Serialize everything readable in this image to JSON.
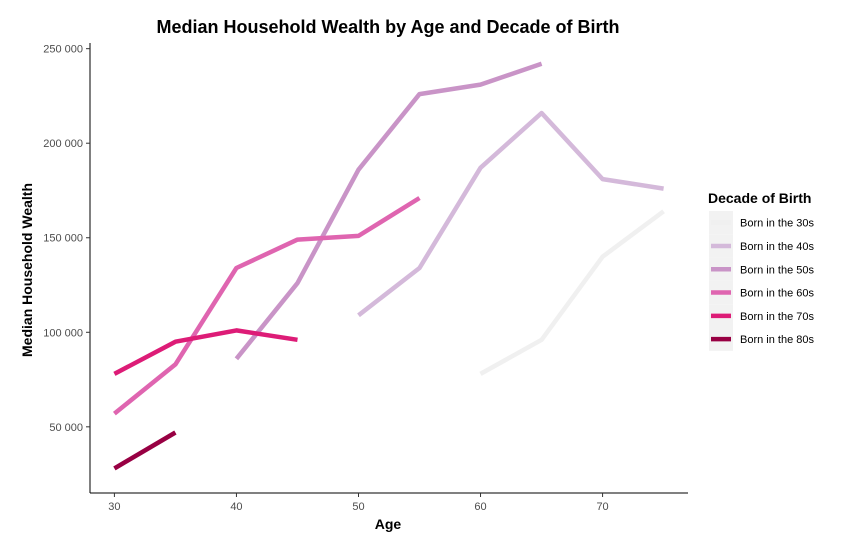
{
  "chart_data": {
    "type": "line",
    "title": "Median Household Wealth by Age and Decade of Birth",
    "xlabel": "Age",
    "ylabel": "Median Household Wealth",
    "xlim": [
      28,
      77
    ],
    "ylim": [
      15000,
      253000
    ],
    "x_ticks": [
      30,
      40,
      50,
      60,
      70
    ],
    "x_tick_labels": [
      "30",
      "40",
      "50",
      "60",
      "70"
    ],
    "y_ticks": [
      50000,
      100000,
      150000,
      200000,
      250000
    ],
    "y_tick_labels": [
      "50 000",
      "100 000",
      "150 000",
      "200 000",
      "250 000"
    ],
    "grid": false,
    "legend": {
      "title": "Decade of Birth",
      "placement": "right"
    },
    "series": [
      {
        "name": "Born in the 30s",
        "color": "#f0f0f0",
        "x": [
          60,
          65,
          70,
          75
        ],
        "y": [
          78000,
          96000,
          140000,
          164000
        ]
      },
      {
        "name": "Born in the 40s",
        "color": "#d4b9da",
        "x": [
          50,
          55,
          60,
          65,
          70,
          75
        ],
        "y": [
          109000,
          134000,
          187000,
          216000,
          181000,
          176000
        ]
      },
      {
        "name": "Born in the 50s",
        "color": "#c994c7",
        "x": [
          40,
          45,
          50,
          55,
          60,
          65
        ],
        "y": [
          86000,
          126000,
          186000,
          226000,
          231000,
          242000
        ]
      },
      {
        "name": "Born in the 60s",
        "color": "#df65b0",
        "x": [
          30,
          35,
          40,
          45,
          50,
          55
        ],
        "y": [
          57000,
          83000,
          134000,
          149000,
          151000,
          171000
        ]
      },
      {
        "name": "Born in the 70s",
        "color": "#dd1c77",
        "x": [
          30,
          35,
          40,
          45
        ],
        "y": [
          78000,
          95000,
          101000,
          96000
        ]
      },
      {
        "name": "Born in the 80s",
        "color": "#980043",
        "x": [
          30,
          35
        ],
        "y": [
          28000,
          47000
        ]
      }
    ]
  }
}
